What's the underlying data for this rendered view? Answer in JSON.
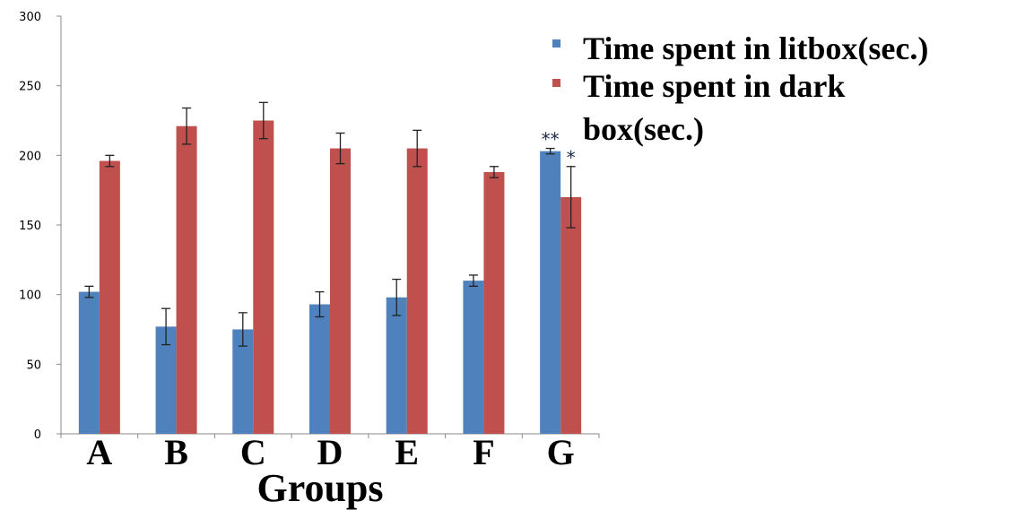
{
  "chart_data": {
    "type": "bar",
    "categories": [
      "A",
      "B",
      "C",
      "D",
      "E",
      "F",
      "G"
    ],
    "series": [
      {
        "name": "Time spent in litbox(sec.)",
        "color": "#4f81bd",
        "values": [
          102,
          77,
          75,
          93,
          98,
          110,
          203
        ],
        "errors": [
          4,
          13,
          12,
          9,
          13,
          4,
          2
        ]
      },
      {
        "name": "Time spent in dark box(sec.)",
        "color": "#c0504d",
        "values": [
          196,
          221,
          225,
          205,
          205,
          188,
          170
        ],
        "errors": [
          4,
          13,
          13,
          11,
          13,
          4,
          22
        ]
      }
    ],
    "xlabel": "Groups",
    "ylabel": "",
    "ylim": [
      0,
      300
    ],
    "yticks": [
      "0",
      "50",
      "100",
      "150",
      "200",
      "250",
      "300"
    ],
    "annotations": [
      {
        "category": "G",
        "series": 0,
        "text": "**"
      },
      {
        "category": "G",
        "series": 1,
        "text": "*"
      }
    ],
    "legend": {
      "position": "top-right",
      "line1": "Time spent in litbox(sec.)",
      "line2": "Time spent in dark",
      "line3": "box(sec.)"
    },
    "grid": false
  }
}
